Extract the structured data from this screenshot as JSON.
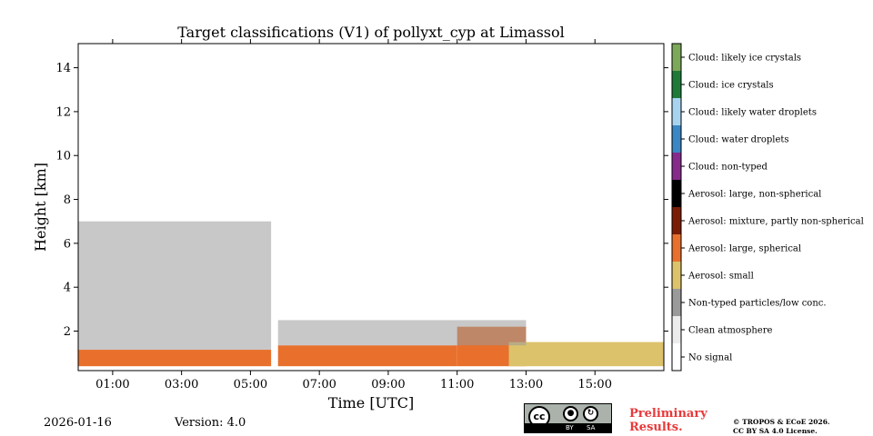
{
  "chart_data": {
    "type": "heatmap",
    "title": "Target classifications (V1) of pollyxt_cyp at Limassol",
    "xlabel": "Time [UTC]",
    "ylabel": "Height [km]",
    "xlim_hours": [
      0,
      17
    ],
    "ylim_km": [
      0.2,
      15.1
    ],
    "x_ticks": [
      {
        "value": 1,
        "label": "01:00"
      },
      {
        "value": 3,
        "label": "03:00"
      },
      {
        "value": 5,
        "label": "05:00"
      },
      {
        "value": 7,
        "label": "07:00"
      },
      {
        "value": 9,
        "label": "09:00"
      },
      {
        "value": 11,
        "label": "11:00"
      },
      {
        "value": 13,
        "label": "13:00"
      },
      {
        "value": 15,
        "label": "15:00"
      }
    ],
    "y_ticks": [
      {
        "value": 2,
        "label": "2"
      },
      {
        "value": 4,
        "label": "4"
      },
      {
        "value": 6,
        "label": "6"
      },
      {
        "value": 8,
        "label": "8"
      },
      {
        "value": 10,
        "label": "10"
      },
      {
        "value": 12,
        "label": "12"
      },
      {
        "value": 14,
        "label": "14"
      }
    ],
    "legend": [
      {
        "label": "Cloud: likely ice crystals",
        "color": "#7ca85a"
      },
      {
        "label": "Cloud: ice crystals",
        "color": "#1f7a3a"
      },
      {
        "label": "Cloud: likely water droplets",
        "color": "#a8d3f0"
      },
      {
        "label": "Cloud: water droplets",
        "color": "#3b86c4"
      },
      {
        "label": "Cloud: non-typed",
        "color": "#862a8c"
      },
      {
        "label": "Aerosol: large, non-spherical",
        "color": "#000000"
      },
      {
        "label": "Aerosol: mixture, partly non-spherical",
        "color": "#7a1c06"
      },
      {
        "label": "Aerosol: large, spherical",
        "color": "#e8702c"
      },
      {
        "label": "Aerosol: small",
        "color": "#dcc26a"
      },
      {
        "label": "Non-typed particles/low conc.",
        "color": "#9a9a9a"
      },
      {
        "label": "Clean atmosphere",
        "color": "#ececec"
      },
      {
        "label": "No signal",
        "color": "#ffffff"
      }
    ],
    "layers": [
      {
        "class": "Aerosol: large, spherical",
        "start_h": 0.0,
        "end_h": 5.6,
        "bottom_km": 0.4,
        "top_km": 1.15
      },
      {
        "class": "Aerosol: large, spherical",
        "start_h": 5.8,
        "end_h": 11.0,
        "bottom_km": 0.4,
        "top_km": 1.35
      },
      {
        "class": "Aerosol: large, spherical",
        "start_h": 11.0,
        "end_h": 13.0,
        "bottom_km": 0.4,
        "top_km": 2.2
      },
      {
        "class": "Aerosol: small",
        "start_h": 12.5,
        "end_h": 17.0,
        "bottom_km": 0.4,
        "top_km": 1.5
      },
      {
        "class": "Non-typed particles/low conc.",
        "start_h": 0.0,
        "end_h": 5.6,
        "bottom_km": 1.15,
        "top_km": 7.0
      },
      {
        "class": "Non-typed particles/low conc.",
        "start_h": 5.8,
        "end_h": 13.0,
        "bottom_km": 1.35,
        "top_km": 2.5
      }
    ],
    "footer": {
      "date": "2026-01-16",
      "version": "Version: 4.0",
      "preliminary": [
        "Preliminary",
        "Results."
      ],
      "copyright": [
        "© TROPOS & ECoE 2026.",
        "CC BY SA 4.0 License."
      ],
      "license_badge": {
        "cc": "cc",
        "by": "BY",
        "sa": "SA"
      }
    }
  }
}
